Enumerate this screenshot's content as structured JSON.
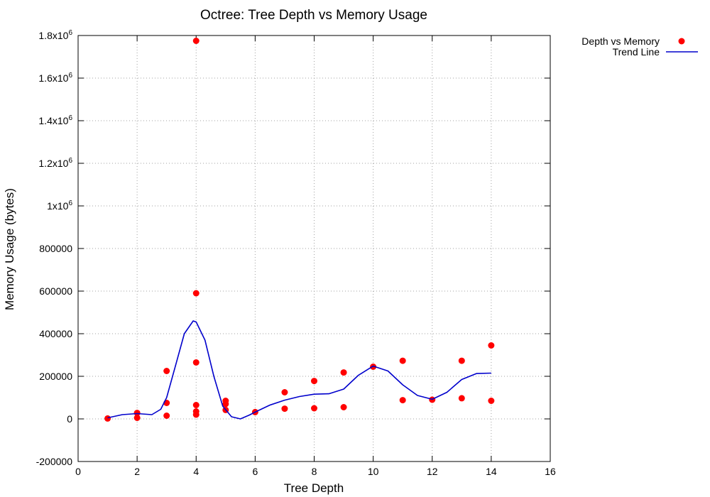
{
  "chart_data": {
    "type": "scatter",
    "title": "Octree: Tree Depth vs Memory Usage",
    "xlabel": "Tree Depth",
    "ylabel": "Memory Usage (bytes)",
    "xlim": [
      0,
      16
    ],
    "ylim": [
      -200000,
      1800000
    ],
    "grid": true,
    "legend_position": "outside top-right",
    "x_ticks": [
      {
        "value": 0,
        "label": "0"
      },
      {
        "value": 2,
        "label": "2"
      },
      {
        "value": 4,
        "label": "4"
      },
      {
        "value": 6,
        "label": "6"
      },
      {
        "value": 8,
        "label": "8"
      },
      {
        "value": 10,
        "label": "10"
      },
      {
        "value": 12,
        "label": "12"
      },
      {
        "value": 14,
        "label": "14"
      },
      {
        "value": 16,
        "label": "16"
      }
    ],
    "y_ticks": [
      {
        "value": -200000,
        "label": "-200000"
      },
      {
        "value": 0,
        "label": "0"
      },
      {
        "value": 200000,
        "label": "200000"
      },
      {
        "value": 400000,
        "label": "400000"
      },
      {
        "value": 600000,
        "label": "600000"
      },
      {
        "value": 800000,
        "label": "800000"
      },
      {
        "value": 1000000,
        "label": "1x10",
        "sup": "6"
      },
      {
        "value": 1200000,
        "label": "1.2x10",
        "sup": "6"
      },
      {
        "value": 1400000,
        "label": "1.4x10",
        "sup": "6"
      },
      {
        "value": 1600000,
        "label": "1.6x10",
        "sup": "6"
      },
      {
        "value": 1800000,
        "label": "1.8x10",
        "sup": "6"
      }
    ],
    "series": [
      {
        "name": "Depth vs Memory",
        "kind": "points",
        "color": "#ff0000",
        "points": [
          [
            1,
            2000
          ],
          [
            2,
            28000
          ],
          [
            2,
            5000
          ],
          [
            3,
            225000
          ],
          [
            3,
            75000
          ],
          [
            3,
            15000
          ],
          [
            4,
            1775000
          ],
          [
            4,
            590000
          ],
          [
            4,
            265000
          ],
          [
            4,
            65000
          ],
          [
            4,
            35000
          ],
          [
            4,
            20000
          ],
          [
            5,
            85000
          ],
          [
            5,
            70000
          ],
          [
            5,
            42000
          ],
          [
            6,
            32000
          ],
          [
            7,
            125000
          ],
          [
            7,
            48000
          ],
          [
            8,
            178000
          ],
          [
            8,
            50000
          ],
          [
            9,
            218000
          ],
          [
            9,
            55000
          ],
          [
            10,
            245000
          ],
          [
            11,
            273000
          ],
          [
            11,
            88000
          ],
          [
            12,
            90000
          ],
          [
            13,
            273000
          ],
          [
            13,
            97000
          ],
          [
            14,
            345000
          ],
          [
            14,
            85000
          ]
        ]
      },
      {
        "name": "Trend Line",
        "kind": "line",
        "color": "#0000cc",
        "points": [
          [
            1,
            5000
          ],
          [
            1.5,
            20000
          ],
          [
            2,
            25000
          ],
          [
            2.5,
            20000
          ],
          [
            2.8,
            45000
          ],
          [
            3,
            100000
          ],
          [
            3.3,
            250000
          ],
          [
            3.6,
            400000
          ],
          [
            3.9,
            460000
          ],
          [
            4,
            455000
          ],
          [
            4.3,
            370000
          ],
          [
            4.6,
            200000
          ],
          [
            4.9,
            60000
          ],
          [
            5.2,
            10000
          ],
          [
            5.5,
            0
          ],
          [
            5.8,
            18000
          ],
          [
            6,
            32000
          ],
          [
            6.5,
            65000
          ],
          [
            7,
            88000
          ],
          [
            7.5,
            105000
          ],
          [
            8,
            116000
          ],
          [
            8.5,
            118000
          ],
          [
            9,
            140000
          ],
          [
            9.5,
            205000
          ],
          [
            10,
            248000
          ],
          [
            10.5,
            225000
          ],
          [
            11,
            160000
          ],
          [
            11.5,
            110000
          ],
          [
            12,
            92000
          ],
          [
            12.5,
            125000
          ],
          [
            13,
            185000
          ],
          [
            13.5,
            213000
          ],
          [
            14,
            215000
          ]
        ]
      }
    ]
  }
}
